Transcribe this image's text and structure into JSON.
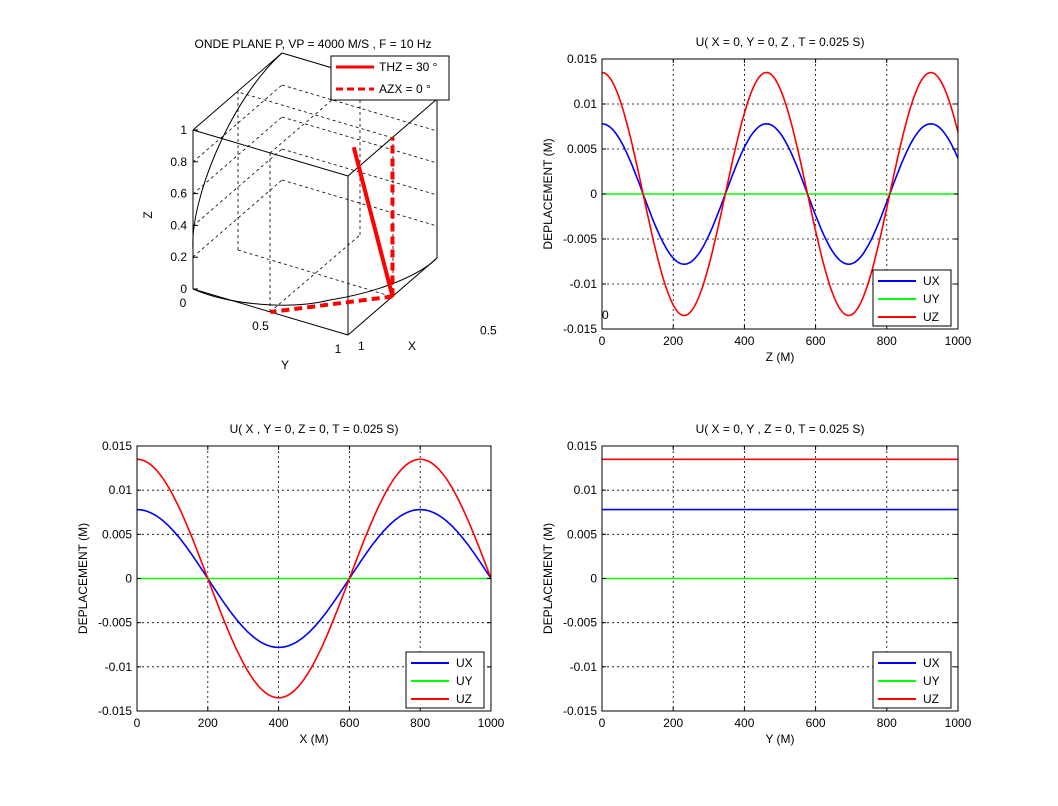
{
  "colors": {
    "ux": "#0000ff",
    "uy": "#00ff00",
    "uz": "#ff0000",
    "axis": "#000000",
    "grid": "#000000"
  },
  "chart_data": [
    {
      "type": "line3d",
      "title": "ONDE PLANE P, VP = 4000 M/S , F = 10 Hz",
      "xlabel": "X",
      "ylabel": "Y",
      "zlabel": "Z",
      "xlim": [
        0,
        1
      ],
      "ylim": [
        0,
        1
      ],
      "zlim": [
        0,
        1
      ],
      "xticks": [
        "0",
        "0.5",
        "1"
      ],
      "yticks": [
        "0",
        "0.5",
        "1"
      ],
      "zticks": [
        "0",
        "0.2",
        "0.4",
        "0.6",
        "0.8",
        "1"
      ],
      "legend": [
        "THZ = 30 °",
        "AZX = 0 °"
      ],
      "legend_position": "top-right",
      "grid": true,
      "series": [
        {
          "name": "THZ = 30 °",
          "style": "solid",
          "x": [
            0.5,
            0.5
          ],
          "y": [
            0.5,
            0.25
          ],
          "z": [
            0,
            0.866
          ]
        },
        {
          "name": "AZX = 0 °",
          "style": "dashed",
          "x": [
            0.5,
            0
          ],
          "y": [
            0.5,
            0.5
          ],
          "z": [
            0,
            0
          ]
        },
        {
          "name": "AZX = 0 °",
          "style": "dashed",
          "x": [
            0.5,
            0.5
          ],
          "y": [
            0.5,
            0.5
          ],
          "z": [
            0,
            1
          ]
        }
      ]
    },
    {
      "type": "line",
      "title": "U( X = 0, Y = 0, Z , T = 0.025 S)",
      "xlabel": "Z (M)",
      "ylabel": "DEPLACEMENT (M)",
      "xlim": [
        0,
        1000
      ],
      "ylim": [
        -0.015,
        0.015
      ],
      "xticks": [
        "0",
        "200",
        "400",
        "600",
        "800",
        "1000"
      ],
      "yticks": [
        "0.015",
        "0.01",
        "0.005",
        "0",
        "-0.005",
        "-0.01",
        "-0.015"
      ],
      "grid": true,
      "legend_position": "bottom-right",
      "wave": {
        "wavelength_m": 461.88,
        "phase_zero_m": 0,
        "axis_scale": 0.866
      },
      "series": [
        {
          "name": "UX",
          "amplitude": 0.0078
        },
        {
          "name": "UY",
          "amplitude": 0
        },
        {
          "name": "UZ",
          "amplitude": 0.0135
        }
      ]
    },
    {
      "type": "line",
      "title": "U( X , Y = 0, Z = 0, T = 0.025 S)",
      "xlabel": "X (M)",
      "ylabel": "DEPLACEMENT (M)",
      "xlim": [
        0,
        1000
      ],
      "ylim": [
        -0.015,
        0.015
      ],
      "xticks": [
        "0",
        "200",
        "400",
        "600",
        "800",
        "1000"
      ],
      "yticks": [
        "0.015",
        "0.01",
        "0.005",
        "0",
        "-0.005",
        "-0.01",
        "-0.015"
      ],
      "grid": true,
      "legend_position": "bottom-right",
      "wave": {
        "wavelength_m": 800,
        "phase_zero_m": 0,
        "axis_scale": 0.5
      },
      "series": [
        {
          "name": "UX",
          "amplitude": 0.0078
        },
        {
          "name": "UY",
          "amplitude": 0
        },
        {
          "name": "UZ",
          "amplitude": 0.0135
        }
      ]
    },
    {
      "type": "line",
      "title": "U( X = 0, Y , Z = 0, T = 0.025 S)",
      "xlabel": "Y (M)",
      "ylabel": "DEPLACEMENT (M)",
      "xlim": [
        0,
        1000
      ],
      "ylim": [
        -0.015,
        0.015
      ],
      "xticks": [
        "0",
        "200",
        "400",
        "600",
        "800",
        "1000"
      ],
      "yticks": [
        "0.015",
        "0.01",
        "0.005",
        "0",
        "-0.005",
        "-0.01",
        "-0.015"
      ],
      "grid": true,
      "legend_position": "bottom-right",
      "series": [
        {
          "name": "UX",
          "x": [
            0,
            1000
          ],
          "values": [
            0.0078,
            0.0078
          ]
        },
        {
          "name": "UY",
          "x": [
            0,
            1000
          ],
          "values": [
            0,
            0
          ]
        },
        {
          "name": "UZ",
          "x": [
            0,
            1000
          ],
          "values": [
            0.0135,
            0.0135
          ]
        }
      ]
    }
  ]
}
